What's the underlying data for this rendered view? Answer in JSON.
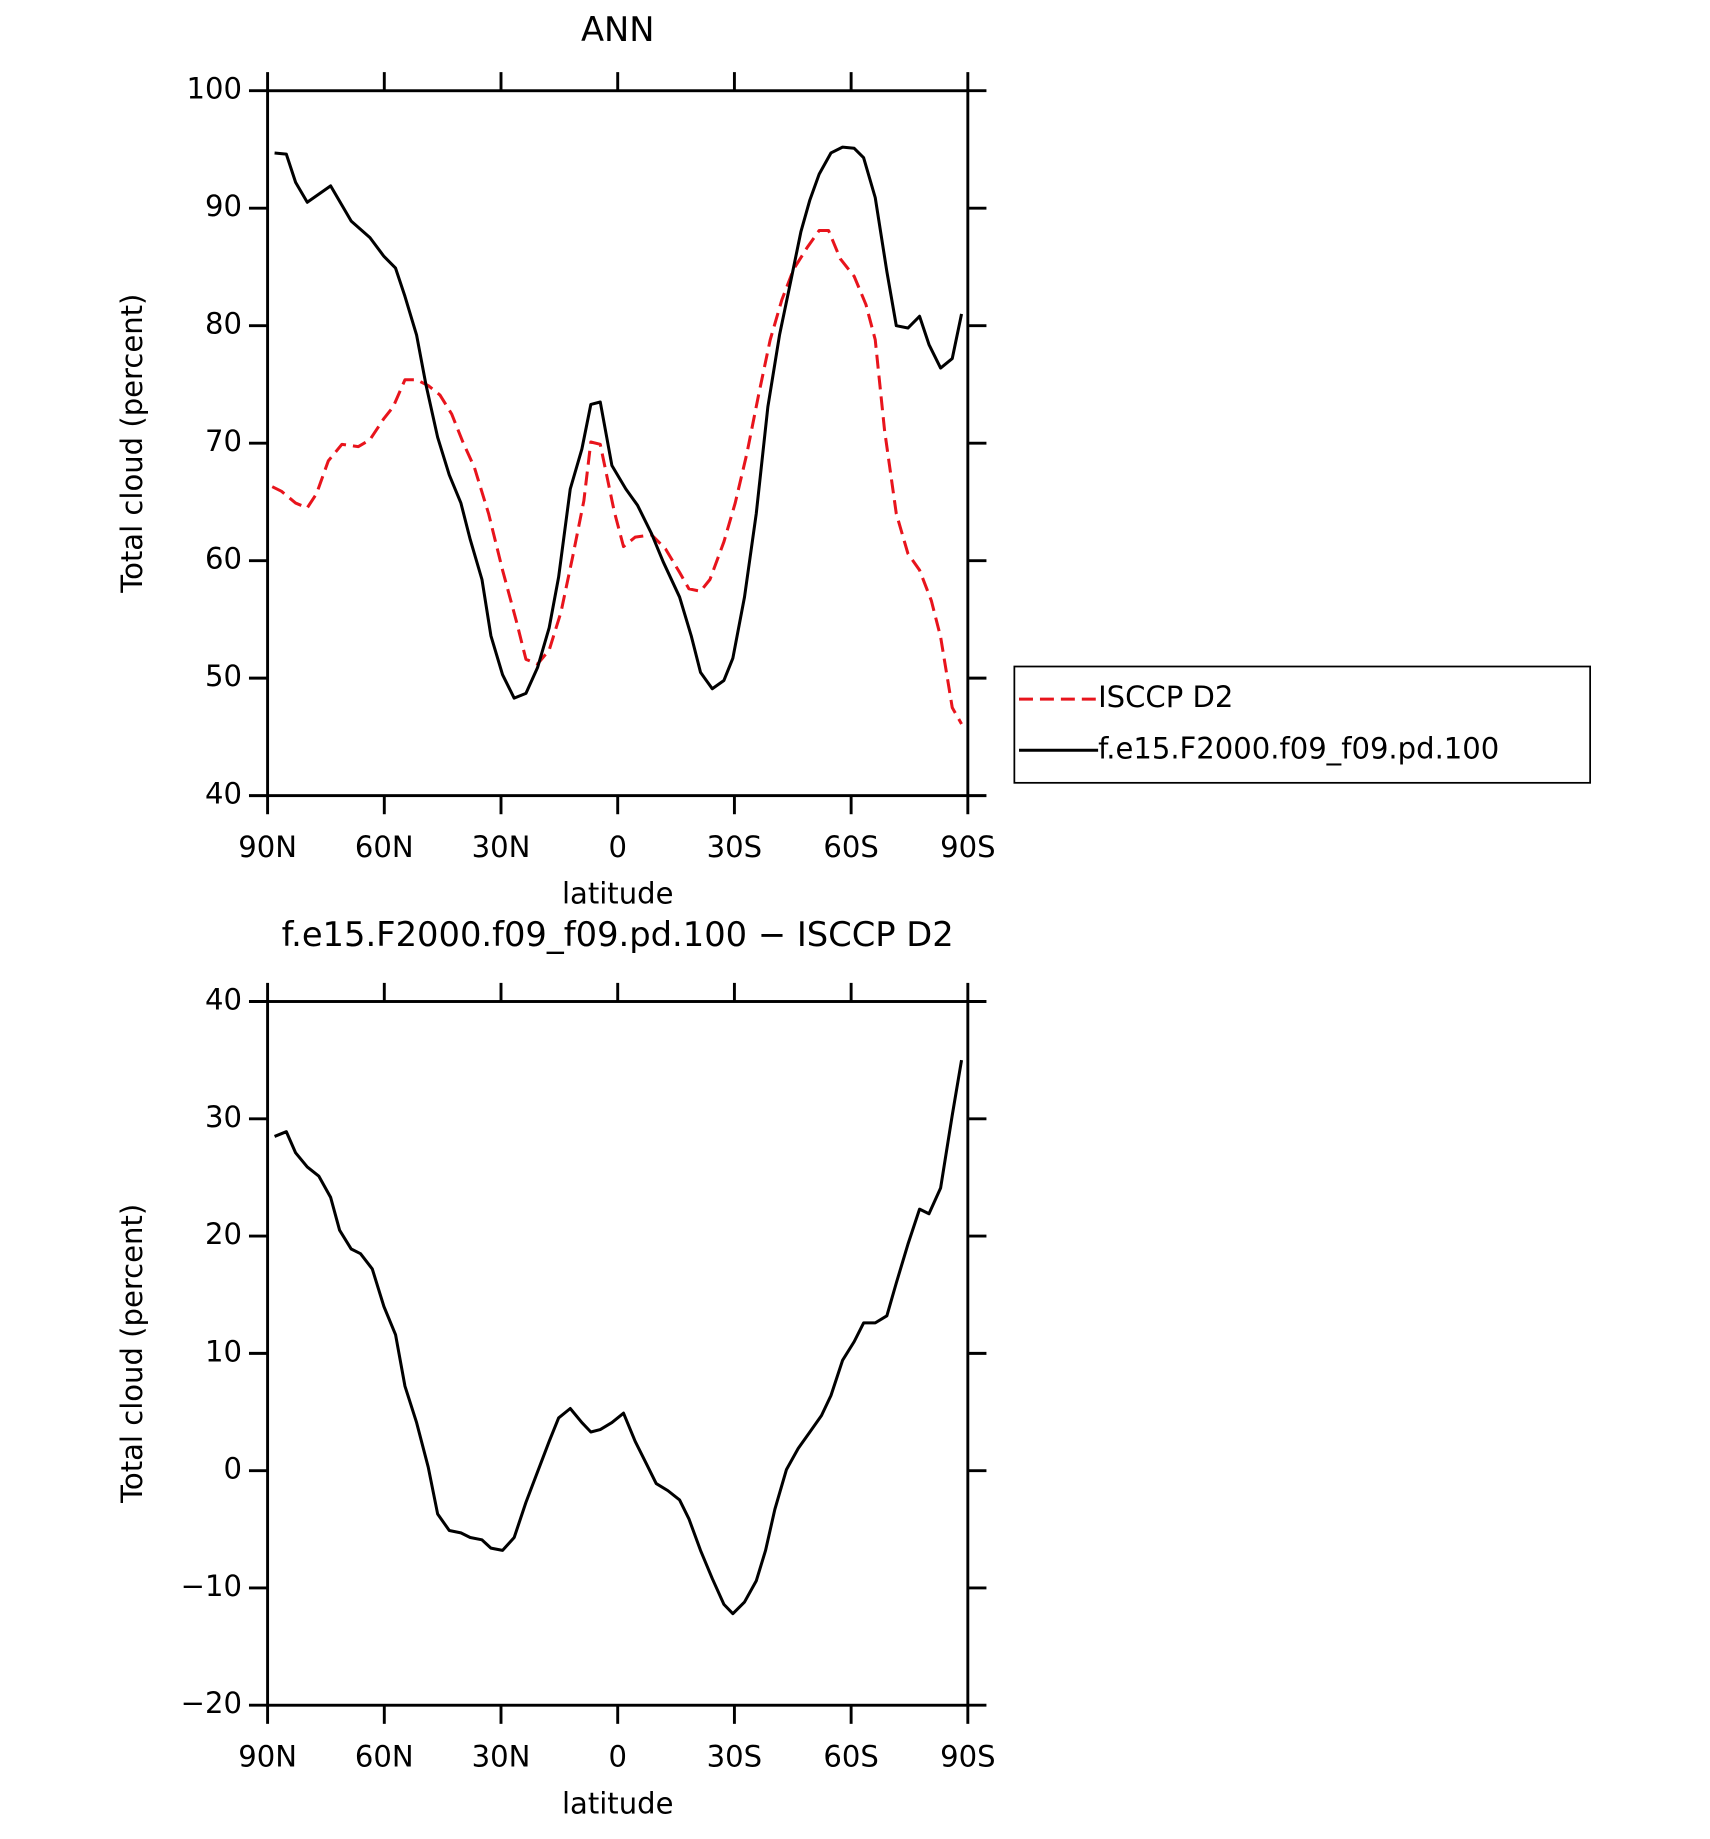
{
  "chart_data": [
    {
      "type": "line",
      "title": "ANN",
      "xlabel": "latitude",
      "ylabel": "Total cloud (percent)",
      "xlim": [
        90,
        -90
      ],
      "ylim": [
        40,
        100
      ],
      "xticks": [
        {
          "value": 90,
          "label": "90N"
        },
        {
          "value": 60,
          "label": "60N"
        },
        {
          "value": 30,
          "label": "30N"
        },
        0,
        {
          "value": -30,
          "label": "30S"
        },
        {
          "value": -60,
          "label": "60S"
        },
        {
          "value": -90,
          "label": "90S"
        }
      ],
      "yticks": [
        40,
        50,
        60,
        70,
        80,
        90,
        100
      ],
      "legend": "right",
      "series": [
        {
          "name": "ISCCP D2",
          "color": "#e8141c",
          "linestyle": "dashed",
          "x": [
            88.8,
            86.4,
            82.8,
            79.8,
            77.4,
            74.4,
            70.9,
            66.7,
            63.7,
            60.1,
            57.7,
            54.7,
            51.7,
            48.7,
            45.7,
            42.7,
            39.8,
            36.8,
            33.2,
            29.6,
            26.0,
            23.6,
            20.6,
            17.6,
            14.6,
            11.6,
            8.7,
            6.9,
            4.5,
            0.9,
            -1.5,
            -4.5,
            -8.7,
            -12.3,
            -15.9,
            -18.3,
            -21.3,
            -23.7,
            -27.3,
            -30.2,
            -33.2,
            -36.2,
            -39.2,
            -42.2,
            -45.2,
            -48.8,
            -51.8,
            -54.2,
            -57.2,
            -60.8,
            -63.8,
            -66.2,
            -68.6,
            -71.6,
            -74.6,
            -77.6,
            -80.6,
            -83.0,
            -86.0,
            -88.4
          ],
          "values": [
            66.3,
            65.9,
            64.9,
            64.5,
            65.7,
            68.5,
            69.9,
            69.7,
            70.3,
            72.1,
            73.1,
            75.4,
            75.4,
            74.9,
            74.1,
            72.5,
            70.1,
            67.9,
            64.0,
            59.2,
            54.8,
            51.6,
            51.2,
            52.4,
            55.6,
            60.3,
            65.1,
            70.1,
            69.9,
            64.2,
            61.2,
            62.0,
            62.2,
            61.0,
            59.0,
            57.6,
            57.4,
            58.4,
            61.6,
            64.9,
            69.1,
            74.1,
            78.8,
            82.2,
            84.8,
            86.7,
            88.1,
            88.1,
            85.7,
            84.2,
            81.8,
            78.8,
            71.1,
            64.0,
            60.6,
            59.2,
            56.6,
            53.5,
            47.5,
            46.1
          ]
        },
        {
          "name": "f.e15.F2000.f09_f09.pd.100",
          "color": "#000000",
          "linestyle": "solid",
          "x": [
            88.2,
            85.2,
            82.8,
            79.8,
            73.8,
            68.5,
            63.7,
            60.1,
            57.1,
            54.7,
            51.7,
            49.3,
            46.3,
            43.3,
            40.3,
            37.9,
            34.9,
            32.6,
            29.6,
            26.6,
            23.6,
            20.6,
            17.6,
            15.2,
            12.2,
            9.2,
            6.9,
            4.5,
            1.5,
            -2.1,
            -5.1,
            -8.7,
            -11.7,
            -15.9,
            -18.9,
            -21.3,
            -24.3,
            -27.3,
            -29.6,
            -32.6,
            -35.6,
            -38.6,
            -41.6,
            -44.6,
            -47.1,
            -49.4,
            -51.8,
            -54.8,
            -57.8,
            -60.8,
            -63.2,
            -66.2,
            -69.2,
            -71.6,
            -74.6,
            -77.6,
            -80.0,
            -83.0,
            -86.0,
            -88.4
          ],
          "values": [
            94.7,
            94.6,
            92.2,
            90.5,
            91.9,
            88.9,
            87.5,
            85.9,
            84.9,
            82.5,
            79.2,
            75.0,
            70.5,
            67.3,
            64.9,
            61.8,
            58.4,
            53.6,
            50.3,
            48.3,
            48.7,
            50.9,
            54.3,
            58.6,
            66.1,
            69.5,
            73.3,
            73.5,
            68.1,
            66.1,
            64.7,
            62.3,
            59.9,
            56.9,
            53.6,
            50.5,
            49.1,
            49.8,
            51.7,
            56.9,
            64.0,
            73.1,
            79.2,
            84.0,
            88.0,
            90.7,
            92.9,
            94.7,
            95.2,
            95.1,
            94.3,
            90.9,
            84.6,
            80.0,
            79.8,
            80.8,
            78.4,
            76.4,
            77.2,
            81.0
          ]
        }
      ]
    },
    {
      "type": "line",
      "title": "f.e15.F2000.f09_f09.pd.100 − ISCCP D2",
      "xlabel": "latitude",
      "ylabel": "Total cloud (percent)",
      "xlim": [
        90,
        -90
      ],
      "ylim": [
        -20,
        40
      ],
      "xticks": [
        {
          "value": 90,
          "label": "90N"
        },
        {
          "value": 60,
          "label": "60N"
        },
        {
          "value": 30,
          "label": "30N"
        },
        0,
        {
          "value": -30,
          "label": "30S"
        },
        {
          "value": -60,
          "label": "60S"
        },
        {
          "value": -90,
          "label": "90S"
        }
      ],
      "yticks": [
        {
          "value": -20,
          "label": "−20"
        },
        {
          "value": -10,
          "label": "−10"
        },
        0,
        10,
        20,
        30,
        40
      ],
      "series": [
        {
          "color": "#000000",
          "linestyle": "solid",
          "x": [
            88.2,
            85.2,
            82.8,
            79.8,
            76.8,
            73.8,
            71.5,
            68.5,
            66.1,
            63.1,
            60.1,
            57.1,
            54.7,
            51.7,
            48.7,
            46.3,
            43.3,
            40.3,
            37.9,
            34.9,
            32.6,
            29.6,
            26.6,
            23.6,
            20.6,
            17.6,
            15.2,
            12.2,
            9.2,
            6.9,
            4.5,
            1.5,
            -1.5,
            -4.5,
            -7.5,
            -9.9,
            -12.9,
            -15.9,
            -18.3,
            -21.3,
            -24.3,
            -27.3,
            -29.6,
            -32.6,
            -35.6,
            -38.0,
            -40.4,
            -43.4,
            -46.4,
            -49.4,
            -52.4,
            -54.8,
            -57.8,
            -60.8,
            -63.2,
            -66.2,
            -69.2,
            -71.6,
            -74.6,
            -77.6,
            -80.0,
            -83.0,
            -86.0,
            -88.4
          ],
          "values": [
            28.5,
            28.9,
            27.1,
            25.9,
            25.1,
            23.3,
            20.5,
            18.9,
            18.5,
            17.2,
            14.0,
            11.6,
            7.2,
            4.1,
            0.3,
            -3.7,
            -5.1,
            -5.3,
            -5.7,
            -5.9,
            -6.6,
            -6.8,
            -5.7,
            -2.7,
            -0.1,
            2.5,
            4.5,
            5.3,
            4.1,
            3.3,
            3.5,
            4.1,
            4.9,
            2.5,
            0.5,
            -1.1,
            -1.7,
            -2.5,
            -4.1,
            -6.8,
            -9.2,
            -11.4,
            -12.2,
            -11.2,
            -9.4,
            -6.8,
            -3.3,
            0.1,
            1.9,
            3.3,
            4.7,
            6.4,
            9.4,
            11.0,
            12.6,
            12.6,
            13.2,
            16.0,
            19.3,
            22.3,
            21.9,
            24.1,
            30.3,
            35.0
          ]
        }
      ]
    }
  ]
}
